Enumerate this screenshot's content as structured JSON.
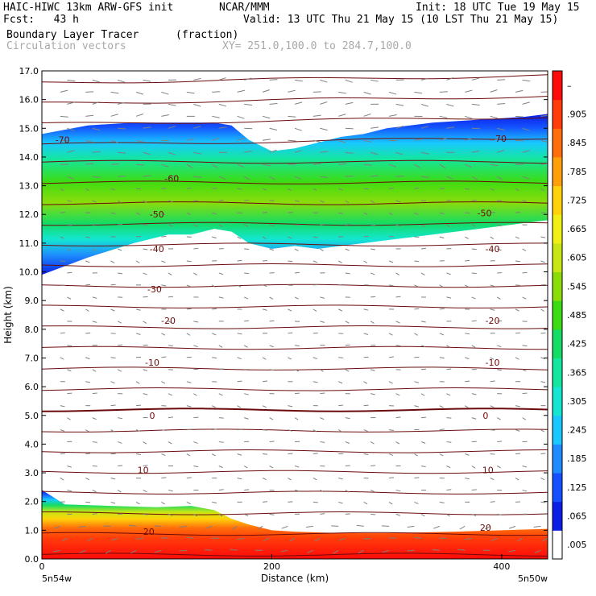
{
  "header": {
    "model": "HAIC-HIWC 13km ARW-GFS init",
    "org": "NCAR/MMM",
    "init": "Init: 18 UTC Tue 19 May 15",
    "fcst": "Fcst:   43 h",
    "valid": "Valid: 13 UTC Thu 21 May 15 (10 LST Thu 21 May 15)",
    "field": "Boundary Layer Tracer",
    "units": "(fraction)",
    "vectors": "Circulation vectors",
    "xy": "XY= 251.0,100.0 to 284.7,100.0"
  },
  "colors": {
    "isotherm": "#6b0a0a",
    "vector": "#808080",
    "scale": [
      "#ffffff",
      "#0a1ee6",
      "#1450ff",
      "#1e8cff",
      "#19c8ff",
      "#14e6d2",
      "#14e6a0",
      "#14dc64",
      "#3cdc14",
      "#8cdc0a",
      "#c8e614",
      "#f0f014",
      "#ffd20a",
      "#ffa00a",
      "#ff6e0a",
      "#ff3c0a",
      "#ff0a0a"
    ]
  },
  "chart_data": {
    "type": "heatmap",
    "title": "Boundary Layer Tracer",
    "xlabel": "Distance (km)",
    "ylabel": "Height (km)",
    "xlim": [
      0,
      440
    ],
    "ylim": [
      0,
      17
    ],
    "x_ticks": [
      0,
      200,
      400
    ],
    "y_ticks": [
      "0.0",
      "1.0",
      "2.0",
      "3.0",
      "4.0",
      "5.0",
      "6.0",
      "7.0",
      "8.0",
      "9.0",
      "10.0",
      "11.0",
      "12.0",
      "13.0",
      "14.0",
      "15.0",
      "16.0",
      "17.0"
    ],
    "x_end_labels": [
      "5n54w",
      "5n50w"
    ],
    "colorbar": {
      "labels": [
        "–",
        ".905",
        ".845",
        ".785",
        ".725",
        ".665",
        ".605",
        ".545",
        ".485",
        ".425",
        ".365",
        ".305",
        ".245",
        ".185",
        ".125",
        ".065",
        ".005"
      ]
    },
    "isotherm_labels": [
      {
        "text": "-70",
        "x": 18,
        "y": 14.6
      },
      {
        "text": "-70",
        "x": 398,
        "y": 14.65
      },
      {
        "text": "-60",
        "x": 113,
        "y": 13.25
      },
      {
        "text": "-50",
        "x": 100,
        "y": 12.0
      },
      {
        "text": "-50",
        "x": 385,
        "y": 12.05
      },
      {
        "text": "-40",
        "x": 100,
        "y": 10.8
      },
      {
        "text": "-40",
        "x": 392,
        "y": 10.8
      },
      {
        "text": "-30",
        "x": 98,
        "y": 9.4
      },
      {
        "text": "-20",
        "x": 110,
        "y": 8.3
      },
      {
        "text": "-20",
        "x": 392,
        "y": 8.3
      },
      {
        "text": "-10",
        "x": 96,
        "y": 6.85
      },
      {
        "text": "-10",
        "x": 392,
        "y": 6.85
      },
      {
        "text": "0",
        "x": 96,
        "y": 5.0
      },
      {
        "text": "0",
        "x": 386,
        "y": 5.0
      },
      {
        "text": "10",
        "x": 88,
        "y": 3.1
      },
      {
        "text": "10",
        "x": 388,
        "y": 3.1
      },
      {
        "text": "20",
        "x": 93,
        "y": 0.95
      },
      {
        "text": "20",
        "x": 386,
        "y": 1.1
      }
    ],
    "upper_layer": {
      "x": [
        0,
        40,
        80,
        110,
        130,
        150,
        165,
        180,
        200,
        220,
        240,
        260,
        280,
        300,
        340,
        380,
        420,
        440
      ],
      "bottom": [
        9.9,
        10.5,
        11.0,
        11.3,
        11.3,
        11.5,
        11.4,
        11.0,
        10.8,
        10.9,
        10.8,
        10.9,
        11.0,
        11.1,
        11.3,
        11.5,
        11.7,
        11.8
      ],
      "top": [
        14.8,
        15.1,
        15.2,
        15.2,
        15.2,
        15.2,
        15.1,
        14.6,
        14.2,
        14.3,
        14.5,
        14.7,
        14.8,
        15.0,
        15.2,
        15.3,
        15.4,
        15.5
      ]
    },
    "lower_layer": {
      "x": [
        0,
        20,
        60,
        100,
        130,
        150,
        165,
        180,
        200,
        220,
        260,
        300,
        360,
        440
      ],
      "top": [
        2.4,
        1.9,
        1.85,
        1.8,
        1.85,
        1.7,
        1.4,
        1.2,
        1.0,
        0.95,
        0.9,
        0.9,
        0.95,
        1.05
      ]
    }
  }
}
